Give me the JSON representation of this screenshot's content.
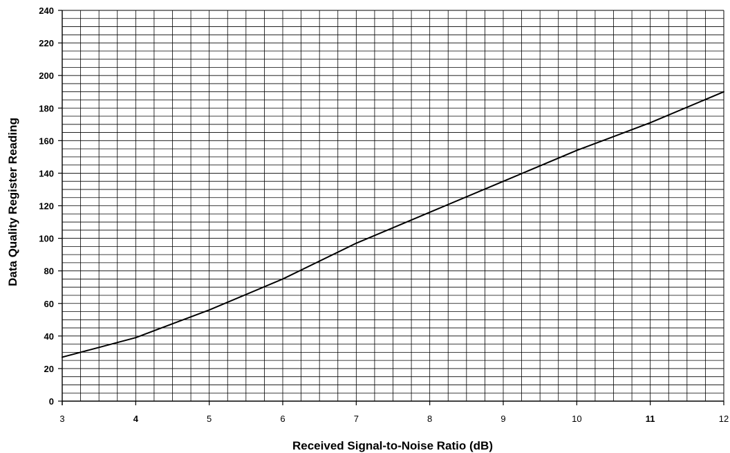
{
  "chart_data": {
    "type": "line",
    "title": "",
    "xlabel": "Received Signal-to-Noise Ratio (dB)",
    "ylabel": "Data Quality Register Reading",
    "xlim": [
      3,
      12
    ],
    "ylim": [
      0,
      240
    ],
    "x_ticks": [
      {
        "value": 3,
        "label": "3",
        "bold": false
      },
      {
        "value": 4,
        "label": "4",
        "bold": true
      },
      {
        "value": 5,
        "label": "5",
        "bold": false
      },
      {
        "value": 6,
        "label": "6",
        "bold": false
      },
      {
        "value": 7,
        "label": "7",
        "bold": false
      },
      {
        "value": 8,
        "label": "8",
        "bold": false
      },
      {
        "value": 9,
        "label": "9",
        "bold": false
      },
      {
        "value": 10,
        "label": "10",
        "bold": false
      },
      {
        "value": 11,
        "label": "11",
        "bold": true
      },
      {
        "value": 12,
        "label": "12",
        "bold": false
      }
    ],
    "y_ticks": [
      {
        "value": 0,
        "label": "0"
      },
      {
        "value": 20,
        "label": "20"
      },
      {
        "value": 40,
        "label": "40"
      },
      {
        "value": 60,
        "label": "60"
      },
      {
        "value": 80,
        "label": "80"
      },
      {
        "value": 100,
        "label": "100"
      },
      {
        "value": 120,
        "label": "120"
      },
      {
        "value": 140,
        "label": "140"
      },
      {
        "value": 160,
        "label": "160"
      },
      {
        "value": 180,
        "label": "180"
      },
      {
        "value": 200,
        "label": "200"
      },
      {
        "value": 220,
        "label": "220"
      },
      {
        "value": 240,
        "label": "240"
      }
    ],
    "grid": {
      "x_minor_step": 0.25,
      "y_minor_step": 5,
      "visible": true
    },
    "series": [
      {
        "x": [
          3,
          4,
          5,
          6,
          7,
          8,
          9,
          10,
          11,
          12
        ],
        "y": [
          27,
          39,
          56,
          75,
          97,
          116,
          135,
          154,
          171,
          190
        ]
      }
    ],
    "colors": {
      "line": "#000000",
      "grid": "#000000",
      "background": "#ffffff"
    }
  }
}
